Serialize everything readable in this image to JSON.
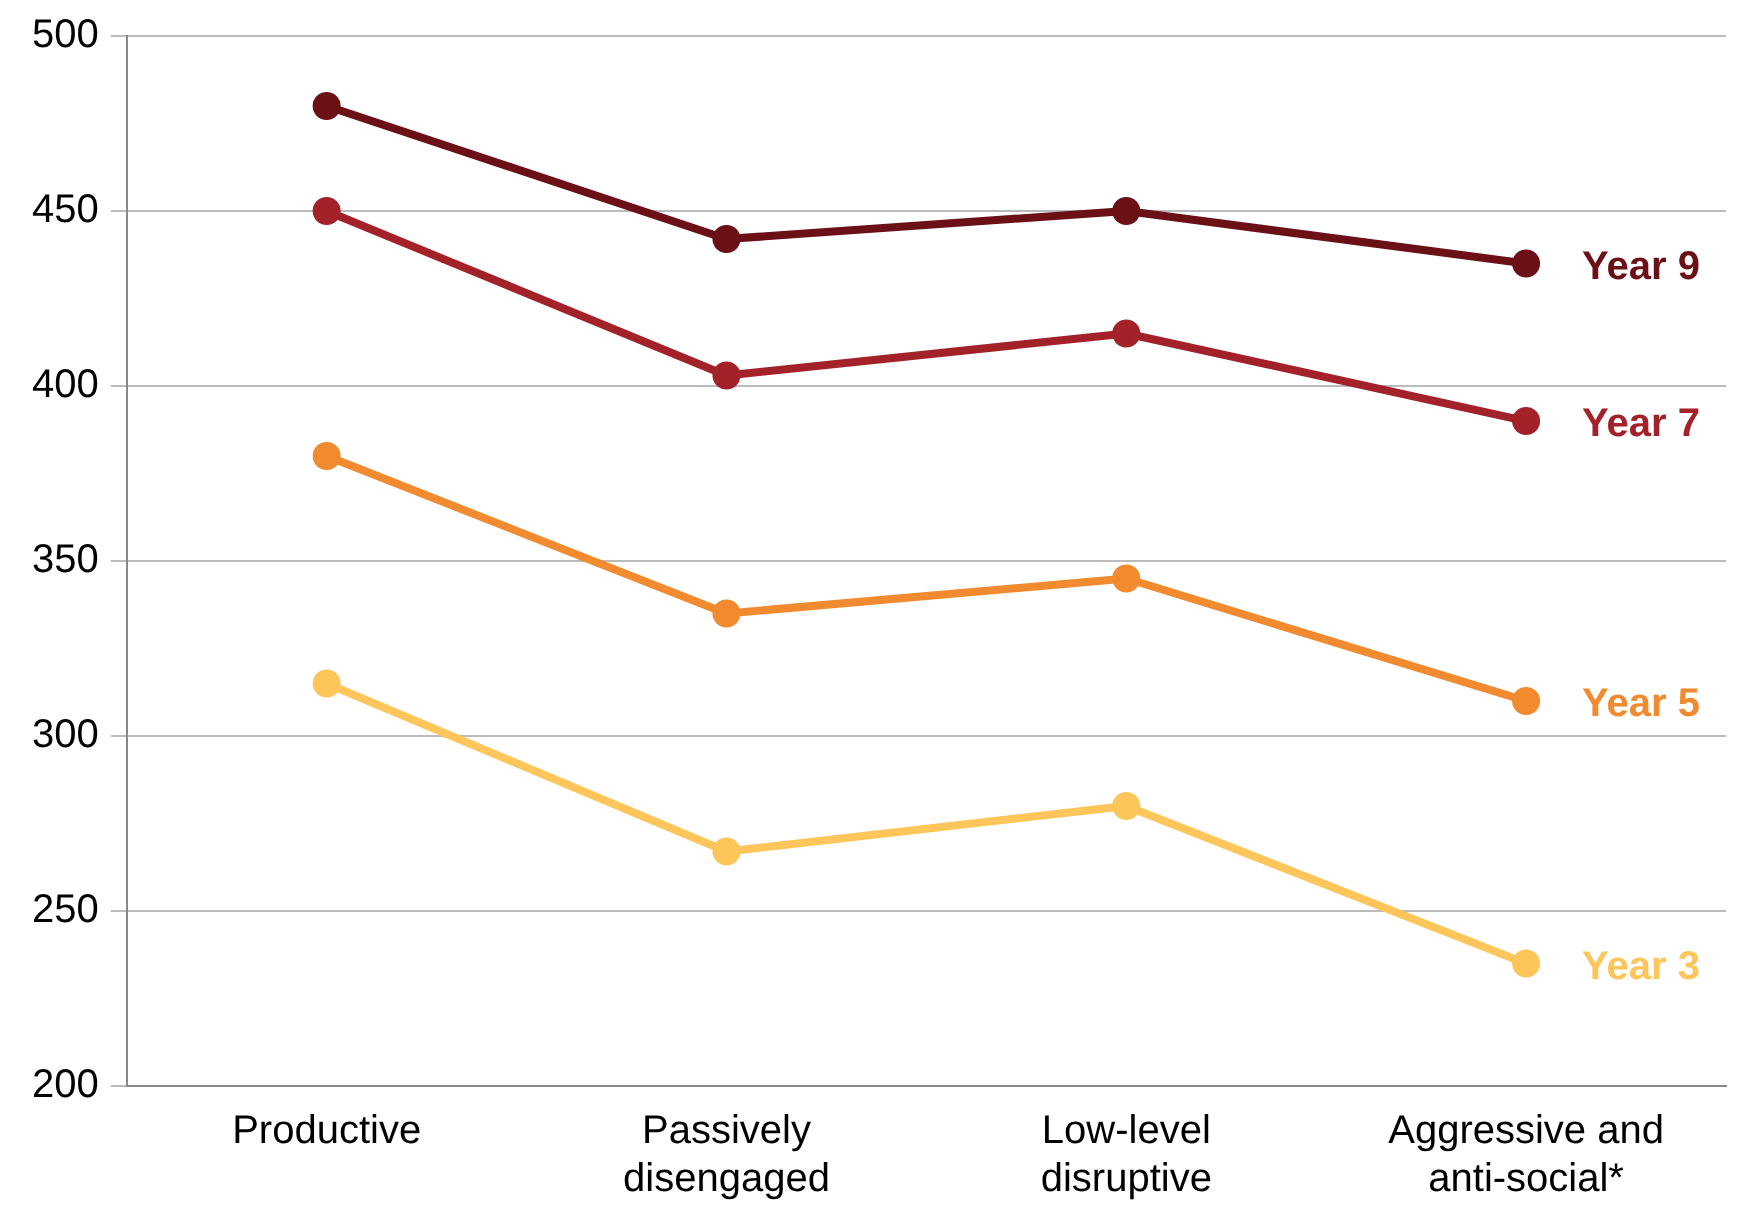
{
  "chart_data": {
    "type": "line",
    "categories": [
      "Productive",
      "Passively disengaged",
      "Low-level disruptive",
      "Aggressive and anti-social*"
    ],
    "series": [
      {
        "name": "Year 9",
        "color": "#6b1016",
        "values": [
          480,
          442,
          450,
          435
        ]
      },
      {
        "name": "Year 7",
        "color": "#a3222a",
        "values": [
          450,
          403,
          415,
          390
        ]
      },
      {
        "name": "Year 5",
        "color": "#f28a30",
        "values": [
          380,
          335,
          345,
          310
        ]
      },
      {
        "name": "Year 3",
        "color": "#fdc55a",
        "values": [
          315,
          267,
          280,
          235
        ]
      }
    ],
    "ylim": [
      200,
      500
    ],
    "yticks": [
      200,
      250,
      300,
      350,
      400,
      450,
      500
    ],
    "grid": "y",
    "legend": false,
    "marker": "circle",
    "line_style": "solid"
  }
}
